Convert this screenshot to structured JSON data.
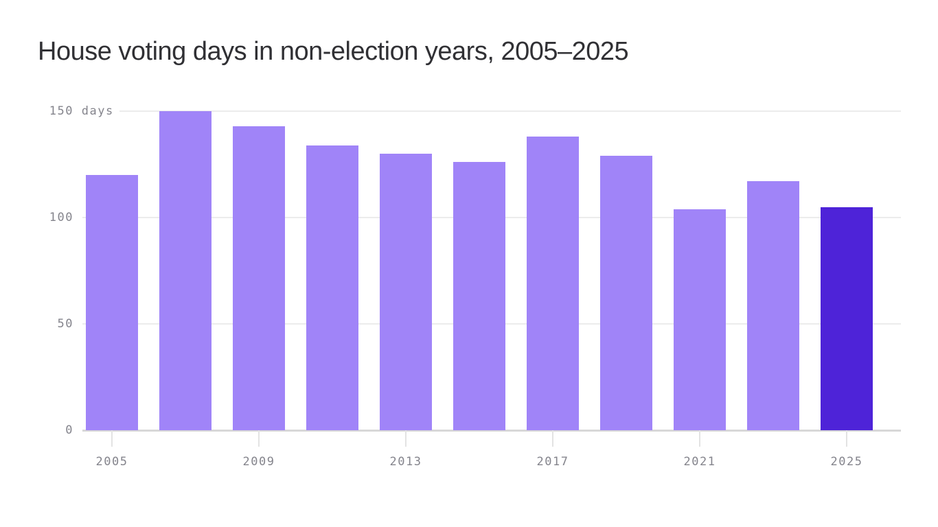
{
  "header": {
    "title": "House voting days in non-election years, 2005–2025"
  },
  "chart_data": {
    "type": "bar",
    "title": "House voting days in non-election years, 2005–2025",
    "categories": [
      "2005",
      "2007",
      "2009",
      "2011",
      "2013",
      "2015",
      "2017",
      "2019",
      "2021",
      "2023",
      "2025"
    ],
    "values": [
      120,
      150,
      143,
      134,
      130,
      126,
      138,
      129,
      104,
      117,
      105
    ],
    "unit": "days",
    "ylim": [
      0,
      150
    ],
    "y_ticks": [
      {
        "value": 0,
        "label": "0"
      },
      {
        "value": 50,
        "label": "50"
      },
      {
        "value": 100,
        "label": "100"
      },
      {
        "value": 150,
        "label": "150",
        "suffix": " days"
      }
    ],
    "x_tick_labels": [
      "2005",
      "2009",
      "2013",
      "2017",
      "2021",
      "2025"
    ],
    "highlight_category": "2025",
    "grid": true,
    "legend": false,
    "colors": {
      "bar": "#a084f8",
      "highlight_bar": "#4e23d8",
      "axis_text": "#84848c",
      "gridline": "#ececec",
      "baseline": "#d8d8d8",
      "title_text": "#303034"
    }
  }
}
